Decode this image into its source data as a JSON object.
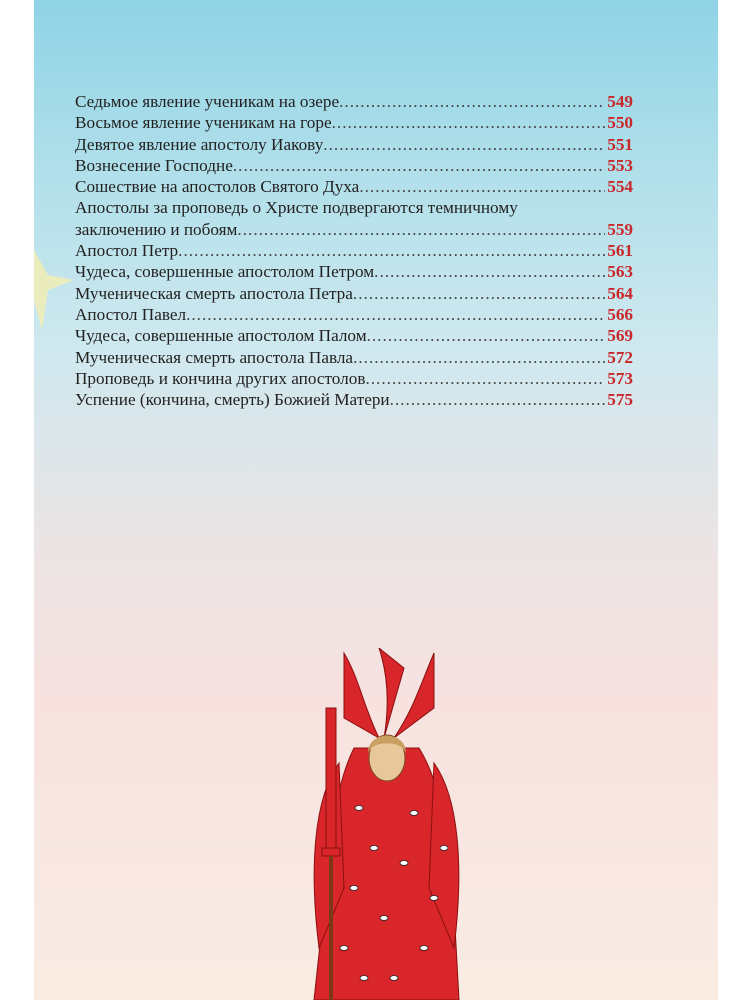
{
  "toc": {
    "entries": [
      {
        "title": "Седьмое явление ученикам на озере",
        "page": "549"
      },
      {
        "title": "Восьмое явление ученикам на горе",
        "page": "550"
      },
      {
        "title": "Девятое явление апостолу Иакову",
        "page": "551"
      },
      {
        "title": "Вознесение Господне",
        "page": "553"
      },
      {
        "title": "Сошествие на апостолов Святого Духа",
        "page": "554"
      },
      {
        "title_line1": "Апостолы за проповедь о Христе подвергаются темничному",
        "title": "заключению и побоям",
        "page": "559"
      },
      {
        "title": "Апостол Петр",
        "page": "561"
      },
      {
        "title": "Чудеса, совершенные апостолом Петром",
        "page": "563"
      },
      {
        "title": "Мученическая смерть апостола Петра",
        "page": "564"
      },
      {
        "title": "Апостол Павел",
        "page": "566"
      },
      {
        "title": "Чудеса, совершенные апостолом Палом",
        "page": "569"
      },
      {
        "title": "Мученическая смерть апостола Павла",
        "page": "572"
      },
      {
        "title": "Проповедь и кончина других апостолов",
        "page": "573"
      },
      {
        "title": "Успение (кончина, смерть) Божией Матери",
        "page": "575"
      }
    ],
    "page_number_color": "#c8282a"
  },
  "illustration": {
    "subject": "seraph-angel",
    "color": "#d8262a"
  }
}
